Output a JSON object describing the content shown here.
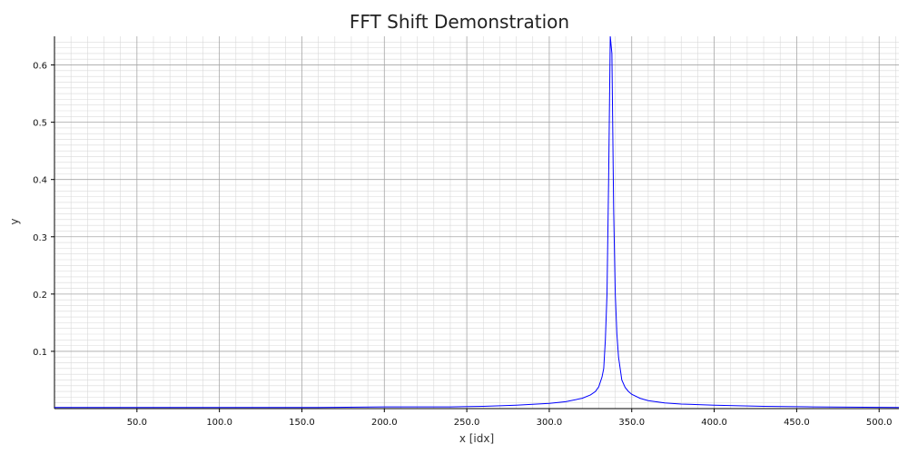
{
  "chart_data": {
    "type": "line",
    "title": "FFT Shift Demonstration",
    "xlabel": "x [idx]",
    "ylabel": "y",
    "xlim": [
      0,
      512
    ],
    "ylim": [
      0,
      0.65
    ],
    "x_ticks": [
      50,
      100,
      150,
      200,
      250,
      300,
      350,
      400,
      450,
      500
    ],
    "x_tick_labels": [
      "50.0",
      "100.0",
      "150.0",
      "200.0",
      "250.0",
      "300.0",
      "350.0",
      "400.0",
      "450.0",
      "500.0"
    ],
    "y_ticks": [
      0.1,
      0.2,
      0.3,
      0.4,
      0.5,
      0.6
    ],
    "y_tick_labels": [
      "0.1",
      "0.2",
      "0.3",
      "0.4",
      "0.5",
      "0.6"
    ],
    "grid": true,
    "line_color": "#0000ff",
    "series": [
      {
        "x": [
          0,
          40,
          80,
          120,
          160,
          200,
          240,
          260,
          280,
          300,
          310,
          320,
          325,
          328,
          330,
          332,
          333,
          334,
          335,
          336,
          337,
          338,
          339,
          340,
          341,
          342,
          343,
          344,
          346,
          348,
          350,
          355,
          360,
          370,
          380,
          400,
          430,
          460,
          512
        ],
        "values": [
          0.002,
          0.002,
          0.002,
          0.002,
          0.002,
          0.003,
          0.003,
          0.004,
          0.006,
          0.009,
          0.012,
          0.018,
          0.024,
          0.03,
          0.038,
          0.055,
          0.07,
          0.12,
          0.2,
          0.4,
          0.65,
          0.62,
          0.35,
          0.2,
          0.13,
          0.09,
          0.07,
          0.05,
          0.037,
          0.03,
          0.025,
          0.018,
          0.014,
          0.01,
          0.008,
          0.006,
          0.004,
          0.003,
          0.002
        ]
      }
    ]
  }
}
